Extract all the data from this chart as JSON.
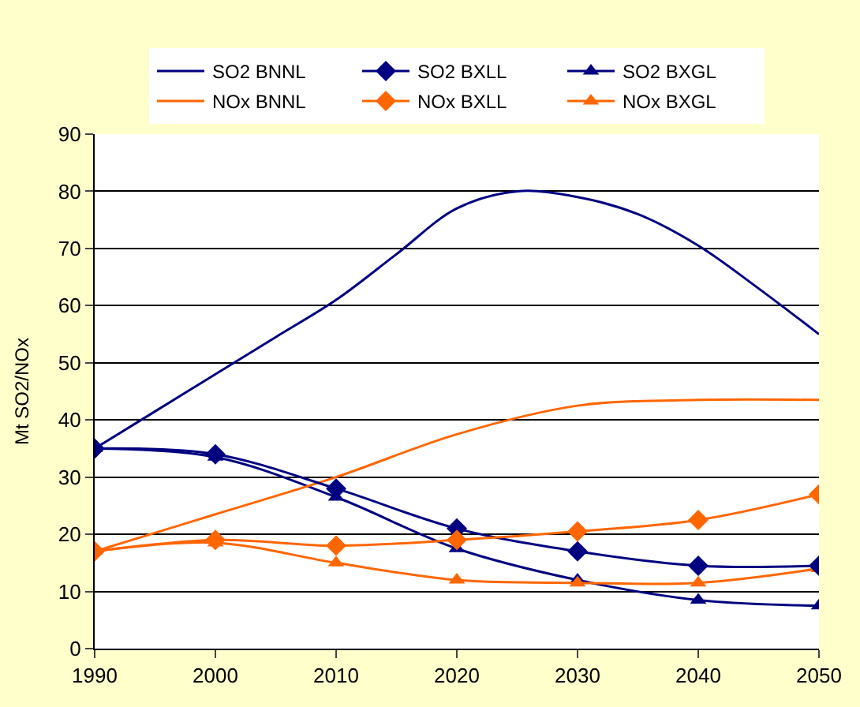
{
  "chart_data": {
    "type": "line",
    "ylabel": "Mt SO2/NOx",
    "x": [
      1990,
      2000,
      2010,
      2020,
      2030,
      2040,
      2050
    ],
    "xlim": [
      1990,
      2050
    ],
    "xticks": [
      1990,
      2000,
      2010,
      2020,
      2030,
      2040,
      2050
    ],
    "ylim": [
      0,
      90
    ],
    "yticks": [
      0,
      10,
      20,
      30,
      40,
      50,
      60,
      70,
      80,
      90
    ],
    "grid": "y",
    "legend": "top",
    "line_style": "solid",
    "series": [
      {
        "name": "SO2 BNNL",
        "color": "#000080",
        "marker": "none",
        "x": [
          1990,
          1995,
          2000,
          2005,
          2010,
          2015,
          2020,
          2025,
          2030,
          2035,
          2040,
          2045,
          2050
        ],
        "values": [
          35,
          41.5,
          48,
          54.5,
          61,
          69,
          77,
          80,
          79,
          76,
          70.5,
          63,
          55
        ]
      },
      {
        "name": "SO2 BXLL",
        "color": "#000080",
        "marker": "diamond",
        "values": [
          35,
          34,
          28,
          21,
          17,
          14.5,
          14.5
        ]
      },
      {
        "name": "SO2 BXGL",
        "color": "#000080",
        "marker": "triangle",
        "values": [
          35,
          33.5,
          26.5,
          17.5,
          12,
          8.5,
          7.5
        ]
      },
      {
        "name": "NOx BNNL",
        "color": "#ff6600",
        "marker": "none",
        "values": [
          17,
          23.5,
          30,
          37.5,
          42.5,
          43.5,
          43.5
        ]
      },
      {
        "name": "NOx BXLL",
        "color": "#ff6600",
        "marker": "diamond",
        "values": [
          17,
          19,
          18,
          19,
          20.5,
          22.5,
          27
        ]
      },
      {
        "name": "NOx BXGL",
        "color": "#ff6600",
        "marker": "triangle",
        "values": [
          17,
          18.5,
          15,
          12,
          11.5,
          11.5,
          14
        ]
      }
    ]
  }
}
